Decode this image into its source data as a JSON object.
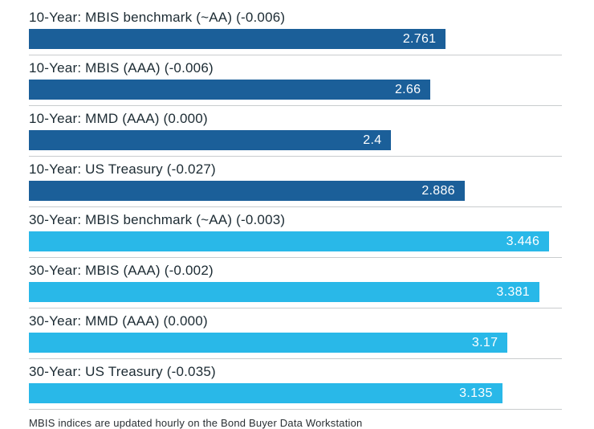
{
  "chart_data": {
    "type": "bar",
    "orientation": "horizontal",
    "title": "",
    "xlabel": "",
    "ylabel": "",
    "xlim": [
      0,
      3.53
    ],
    "grid": false,
    "legend": "none",
    "colors": {
      "dark_blue": "#1b5f99",
      "light_blue": "#29b8e8"
    },
    "bars": [
      {
        "label": "10-Year: MBIS benchmark (~AA) (-0.006)",
        "value": 2.761,
        "value_label": "2.761",
        "change": -0.006,
        "color_key": "dark_blue"
      },
      {
        "label": "10-Year: MBIS (AAA) (-0.006)",
        "value": 2.66,
        "value_label": "2.66",
        "change": -0.006,
        "color_key": "dark_blue"
      },
      {
        "label": "10-Year: MMD (AAA) (0.000)",
        "value": 2.4,
        "value_label": "2.4",
        "change": 0.0,
        "color_key": "dark_blue"
      },
      {
        "label": "10-Year: US Treasury (-0.027)",
        "value": 2.886,
        "value_label": "2.886",
        "change": -0.027,
        "color_key": "dark_blue"
      },
      {
        "label": "30-Year: MBIS benchmark (~AA) (-0.003)",
        "value": 3.446,
        "value_label": "3.446",
        "change": -0.003,
        "color_key": "light_blue"
      },
      {
        "label": "30-Year: MBIS (AAA) (-0.002)",
        "value": 3.381,
        "value_label": "3.381",
        "change": -0.002,
        "color_key": "light_blue"
      },
      {
        "label": "30-Year: MMD (AAA) (0.000)",
        "value": 3.17,
        "value_label": "3.17",
        "change": 0.0,
        "color_key": "light_blue"
      },
      {
        "label": "30-Year: US Treasury (-0.035)",
        "value": 3.135,
        "value_label": "3.135",
        "change": -0.035,
        "color_key": "light_blue"
      }
    ],
    "footer": "MBIS indices are updated hourly on the Bond Buyer Data Workstation"
  }
}
